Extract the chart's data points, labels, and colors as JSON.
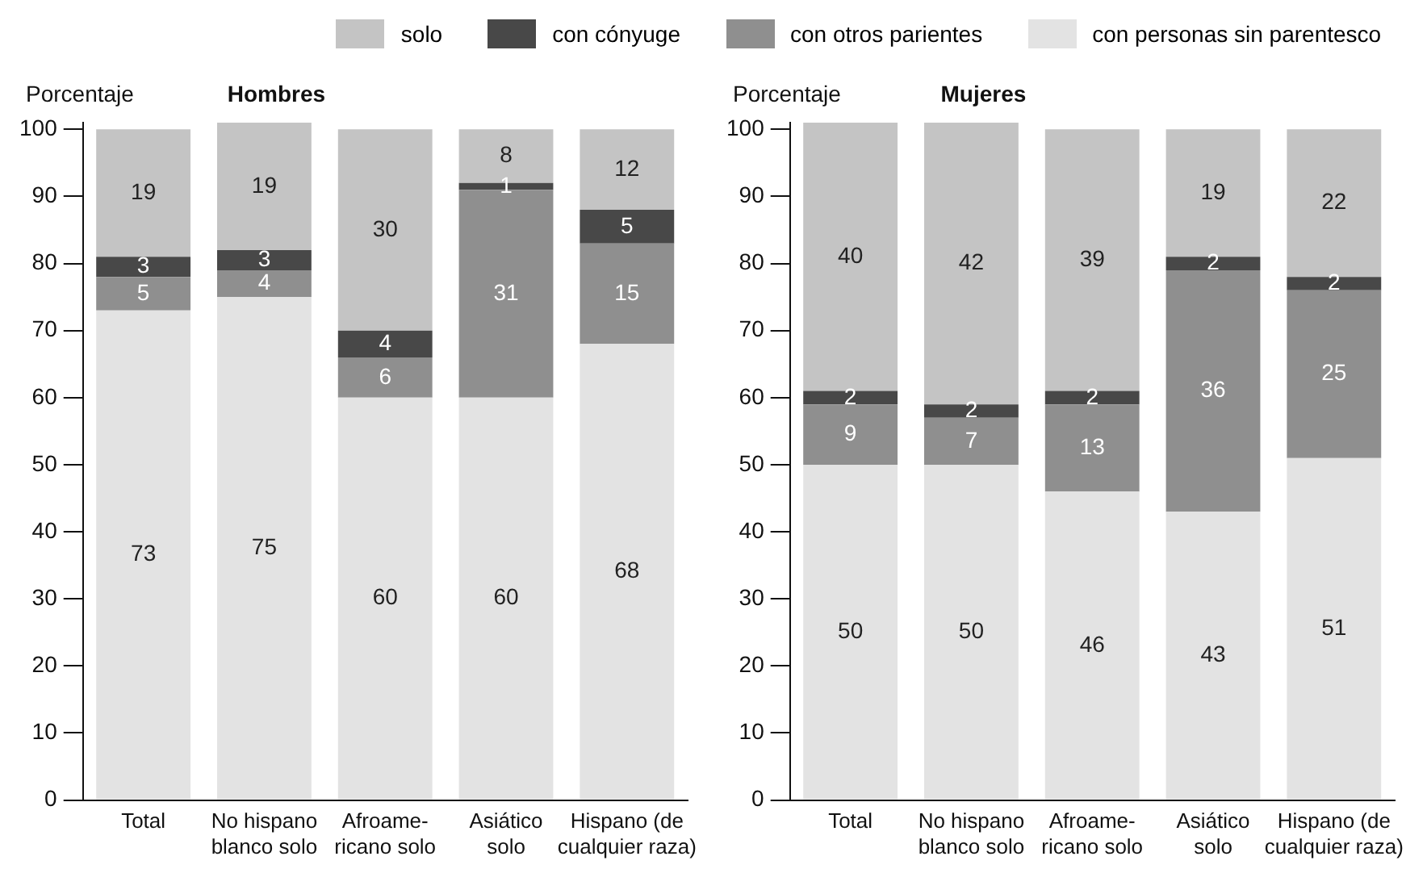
{
  "chart_data": [
    {
      "type": "bar",
      "title": "Hombres",
      "ylabel": "Porcentaje",
      "stacked": true,
      "legend": "top",
      "grid": false,
      "data_labels": true,
      "categories": [
        "Total",
        "No hispano\nblanco solo",
        "Afroame-\nricano solo",
        "Asiático\nsolo",
        "Hispano (de\ncualquier raza)"
      ],
      "ylim": [
        0,
        101
      ],
      "yticks": [
        0,
        10,
        20,
        30,
        40,
        50,
        60,
        70,
        80,
        90,
        100
      ],
      "series": [
        {
          "name": "con personas sin parentesco",
          "color": "#e3e3e3",
          "values": [
            73,
            75,
            60,
            60,
            68
          ]
        },
        {
          "name": "con otros parientes",
          "color": "#8f8f8f",
          "values": [
            5,
            4,
            6,
            31,
            15
          ]
        },
        {
          "name": "con cónyuge",
          "color": "#484848",
          "values": [
            3,
            3,
            4,
            1,
            5
          ]
        },
        {
          "name": "solo",
          "color": "#c4c4c4",
          "values": [
            19,
            19,
            30,
            8,
            12
          ]
        }
      ]
    },
    {
      "type": "bar",
      "title": "Mujeres",
      "ylabel": "Porcentaje",
      "stacked": true,
      "grid": false,
      "data_labels": true,
      "categories": [
        "Total",
        "No hispano\nblanco solo",
        "Afroame-\nricano solo",
        "Asiático\nsolo",
        "Hispano (de\ncualquier raza)"
      ],
      "ylim": [
        0,
        101
      ],
      "yticks": [
        0,
        10,
        20,
        30,
        40,
        50,
        60,
        70,
        80,
        90,
        100
      ],
      "series": [
        {
          "color": "#e3e3e3",
          "values": [
            50,
            50,
            46,
            43,
            51
          ]
        },
        {
          "color": "#8f8f8f",
          "values": [
            9,
            7,
            13,
            36,
            25
          ]
        },
        {
          "color": "#484848",
          "values": [
            2,
            2,
            2,
            2,
            2
          ]
        },
        {
          "color": "#c4c4c4",
          "values": [
            40,
            42,
            39,
            19,
            22
          ]
        }
      ]
    }
  ]
}
